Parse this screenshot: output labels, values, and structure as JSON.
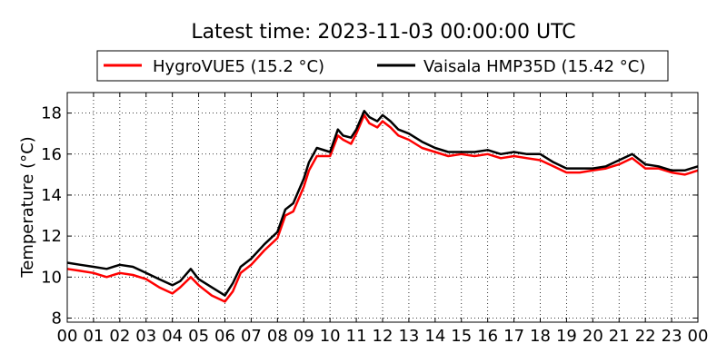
{
  "chart_data": {
    "type": "line",
    "title": "Latest time: 2023-11-03 00:00:00 UTC",
    "xlabel": "",
    "ylabel": "Temperature (°C)",
    "xlim": [
      0,
      24
    ],
    "ylim": [
      7.8,
      19.0
    ],
    "x_ticks": [
      "00",
      "01",
      "02",
      "03",
      "04",
      "05",
      "06",
      "07",
      "08",
      "09",
      "10",
      "11",
      "12",
      "13",
      "14",
      "15",
      "16",
      "17",
      "18",
      "19",
      "20",
      "21",
      "22",
      "23",
      "00"
    ],
    "y_ticks": [
      8,
      10,
      12,
      14,
      16,
      18
    ],
    "grid": true,
    "legend_position": "top-center",
    "series": [
      {
        "name": "HygroVUE5 (15.2 °C)",
        "color": "#ff0000",
        "x": [
          0,
          0.5,
          1,
          1.5,
          2,
          2.5,
          3,
          3.5,
          4,
          4.3,
          4.7,
          5,
          5.5,
          6,
          6.3,
          6.6,
          7,
          7.5,
          8,
          8.3,
          8.6,
          9,
          9.2,
          9.5,
          10,
          10.3,
          10.5,
          10.8,
          11,
          11.3,
          11.5,
          11.8,
          12,
          12.3,
          12.6,
          13,
          13.5,
          14,
          14.5,
          15,
          15.5,
          16,
          16.5,
          17,
          17.5,
          18,
          18.5,
          19,
          19.5,
          20,
          20.5,
          21,
          21.5,
          22,
          22.5,
          23,
          23.5,
          24
        ],
        "y": [
          10.4,
          10.3,
          10.2,
          10.0,
          10.2,
          10.1,
          9.9,
          9.5,
          9.2,
          9.5,
          10.0,
          9.6,
          9.1,
          8.8,
          9.3,
          10.2,
          10.6,
          11.3,
          11.9,
          13.0,
          13.2,
          14.4,
          15.2,
          15.9,
          15.9,
          16.9,
          16.7,
          16.5,
          17.0,
          17.9,
          17.5,
          17.3,
          17.6,
          17.3,
          16.9,
          16.7,
          16.3,
          16.1,
          15.9,
          16.0,
          15.9,
          16.0,
          15.8,
          15.9,
          15.8,
          15.7,
          15.4,
          15.1,
          15.1,
          15.2,
          15.3,
          15.5,
          15.8,
          15.3,
          15.3,
          15.1,
          15.0,
          15.2
        ]
      },
      {
        "name": "Vaisala HMP35D (15.42 °C)",
        "color": "#000000",
        "x": [
          0,
          0.5,
          1,
          1.5,
          2,
          2.5,
          3,
          3.5,
          4,
          4.3,
          4.7,
          5,
          5.5,
          6,
          6.3,
          6.6,
          7,
          7.5,
          8,
          8.3,
          8.6,
          9,
          9.2,
          9.5,
          10,
          10.3,
          10.5,
          10.8,
          11,
          11.3,
          11.5,
          11.8,
          12,
          12.3,
          12.6,
          13,
          13.5,
          14,
          14.5,
          15,
          15.5,
          16,
          16.5,
          17,
          17.5,
          18,
          18.5,
          19,
          19.5,
          20,
          20.5,
          21,
          21.5,
          22,
          22.5,
          23,
          23.5,
          24
        ],
        "y": [
          10.7,
          10.6,
          10.5,
          10.4,
          10.6,
          10.5,
          10.2,
          9.9,
          9.6,
          9.8,
          10.4,
          9.9,
          9.5,
          9.1,
          9.7,
          10.5,
          10.9,
          11.6,
          12.2,
          13.3,
          13.6,
          14.8,
          15.6,
          16.3,
          16.1,
          17.2,
          16.9,
          16.8,
          17.2,
          18.1,
          17.8,
          17.6,
          17.9,
          17.6,
          17.2,
          17.0,
          16.6,
          16.3,
          16.1,
          16.1,
          16.1,
          16.2,
          16.0,
          16.1,
          16.0,
          16.0,
          15.6,
          15.3,
          15.3,
          15.3,
          15.4,
          15.7,
          16.0,
          15.5,
          15.4,
          15.2,
          15.2,
          15.4
        ]
      }
    ]
  }
}
